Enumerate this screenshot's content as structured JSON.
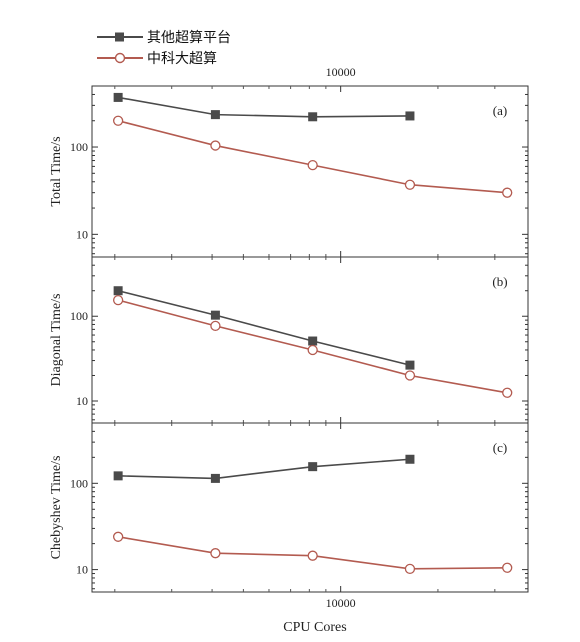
{
  "chart_data": {
    "type": "line",
    "xscale": "log",
    "yscale": "log",
    "xlabel": "CPU Cores",
    "top_x_tick": "10000",
    "bottom_x_tick": "10000",
    "legend": {
      "placement": "top-left",
      "entries": [
        {
          "name": "其他超算平台",
          "color": "#4a4a4a",
          "marker": "filled-square"
        },
        {
          "name": "中科大超算",
          "color": "#b35b50",
          "marker": "open-circle"
        }
      ]
    },
    "panels": [
      {
        "tag": "(a)",
        "ylabel": "Total Time/s",
        "ylim": [
          5.5,
          500
        ],
        "yticks": [
          {
            "value": 10,
            "label": "10"
          },
          {
            "value": 100,
            "label": "100"
          }
        ],
        "series": [
          {
            "name": "其他超算平台",
            "x": [
              2048,
              4096,
              8192,
              16384
            ],
            "y": [
              370,
              235,
              222,
              227
            ]
          },
          {
            "name": "中科大超算",
            "x": [
              2048,
              4096,
              8192,
              16384,
              32768
            ],
            "y": [
              200,
              104,
              62,
              37,
              30
            ]
          }
        ]
      },
      {
        "tag": "(b)",
        "ylabel": "Diagonal Time/s",
        "ylim": [
          5.5,
          500
        ],
        "yticks": [
          {
            "value": 10,
            "label": "10"
          },
          {
            "value": 100,
            "label": "100"
          }
        ],
        "series": [
          {
            "name": "其他超算平台",
            "x": [
              2048,
              4096,
              8192,
              16384
            ],
            "y": [
              200,
              103,
              51,
              26.5
            ]
          },
          {
            "name": "中科大超算",
            "x": [
              2048,
              4096,
              8192,
              16384,
              32768
            ],
            "y": [
              155,
              77,
              40,
              20,
              12.5
            ]
          }
        ]
      },
      {
        "tag": "(c)",
        "ylabel": "Chebyshev Time/s",
        "ylim": [
          5.5,
          500
        ],
        "yticks": [
          {
            "value": 10,
            "label": "10"
          },
          {
            "value": 100,
            "label": "100"
          }
        ],
        "series": [
          {
            "name": "其他超算平台",
            "x": [
              2048,
              4096,
              8192,
              16384
            ],
            "y": [
              122,
              114,
              156,
              190
            ]
          },
          {
            "name": "中科大超算",
            "x": [
              2048,
              4096,
              8192,
              16384,
              32768
            ],
            "y": [
              24,
              15.5,
              14.5,
              10.2,
              10.5
            ]
          }
        ]
      }
    ]
  }
}
